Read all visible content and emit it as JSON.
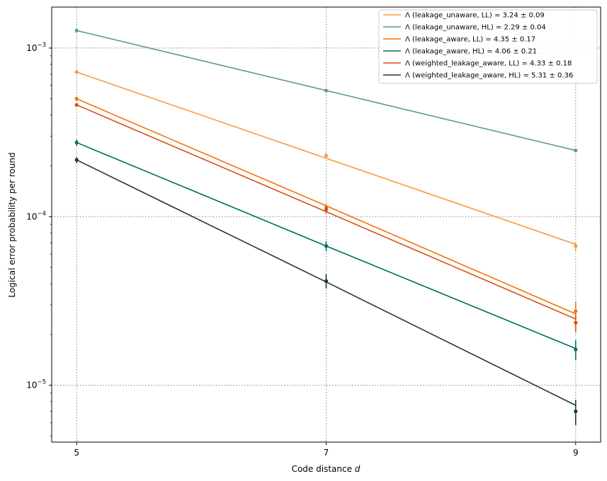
{
  "chart_data": {
    "type": "line",
    "title": "",
    "xlabel_prefix": "Code distance ",
    "xlabel_var": "d",
    "ylabel": "Logical error probability per round",
    "x": [
      5,
      7,
      9
    ],
    "xticks": [
      "5",
      "7",
      "9"
    ],
    "xlim": [
      4.8,
      9.2
    ],
    "yscale": "log",
    "ylim": [
      4.6e-06,
      0.00175
    ],
    "yticks": [
      {
        "value": 1e-05,
        "base": "10",
        "exp": "−5"
      },
      {
        "value": 0.0001,
        "base": "10",
        "exp": "−4"
      },
      {
        "value": 0.001,
        "base": "10",
        "exp": "−3"
      }
    ],
    "grid": true,
    "legend_position": "top-right",
    "series": [
      {
        "name": "Λ (leakage_unaware, LL) = 3.24 ± 0.09",
        "color": "#f79b45",
        "fit": [
          0.00072,
          0.000222,
          6.85e-05
        ],
        "points": [
          0.00072,
          0.00023,
          6.7e-05
        ],
        "err": [
          1.5e-06,
          8e-06,
          4e-06
        ]
      },
      {
        "name": "Λ (leakage_unaware, HL) = 2.29 ± 0.04",
        "color": "#5f9a92",
        "fit": [
          0.00127,
          0.00056,
          0.000247
        ],
        "points": [
          0.00127,
          0.00056,
          0.000247
        ],
        "err": [
          1.5e-05,
          6e-06,
          6e-06
        ]
      },
      {
        "name": "Λ (leakage_aware, LL) = 4.35 ± 0.17",
        "color": "#f4720a",
        "fit": [
          0.0005,
          0.000116,
          2.65e-05
        ],
        "points": [
          0.0005,
          0.000113,
          2.75e-05
        ],
        "err": [
          1.5e-05,
          6e-06,
          3.5e-06
        ]
      },
      {
        "name": "Λ (leakage_aware, HL) = 4.06 ± 0.21",
        "color": "#006e62",
        "fit": [
          0.000275,
          6.7e-05,
          1.65e-05
        ],
        "points": [
          0.000275,
          6.7e-05,
          1.63e-05
        ],
        "err": [
          1.2e-05,
          4.5e-06,
          2.2e-06
        ]
      },
      {
        "name": "Λ (weighted_leakage_aware, LL) = 4.33 ± 0.18",
        "color": "#da5010",
        "fit": [
          0.00046,
          0.000107,
          2.47e-05
        ],
        "points": [
          0.00046,
          0.00011,
          2.35e-05
        ],
        "err": [
          1.3e-05,
          5.5e-06,
          2.8e-06
        ]
      },
      {
        "name": "Λ (weighted_leakage_aware, HL) = 5.31 ± 0.36",
        "color": "#1b3a30",
        "fit": [
          0.000217,
          4.1e-05,
          7.6e-06
        ],
        "points": [
          0.000217,
          4.15e-05,
          7e-06
        ],
        "err": [
          9e-06,
          4e-06,
          1.2e-06
        ]
      }
    ]
  }
}
